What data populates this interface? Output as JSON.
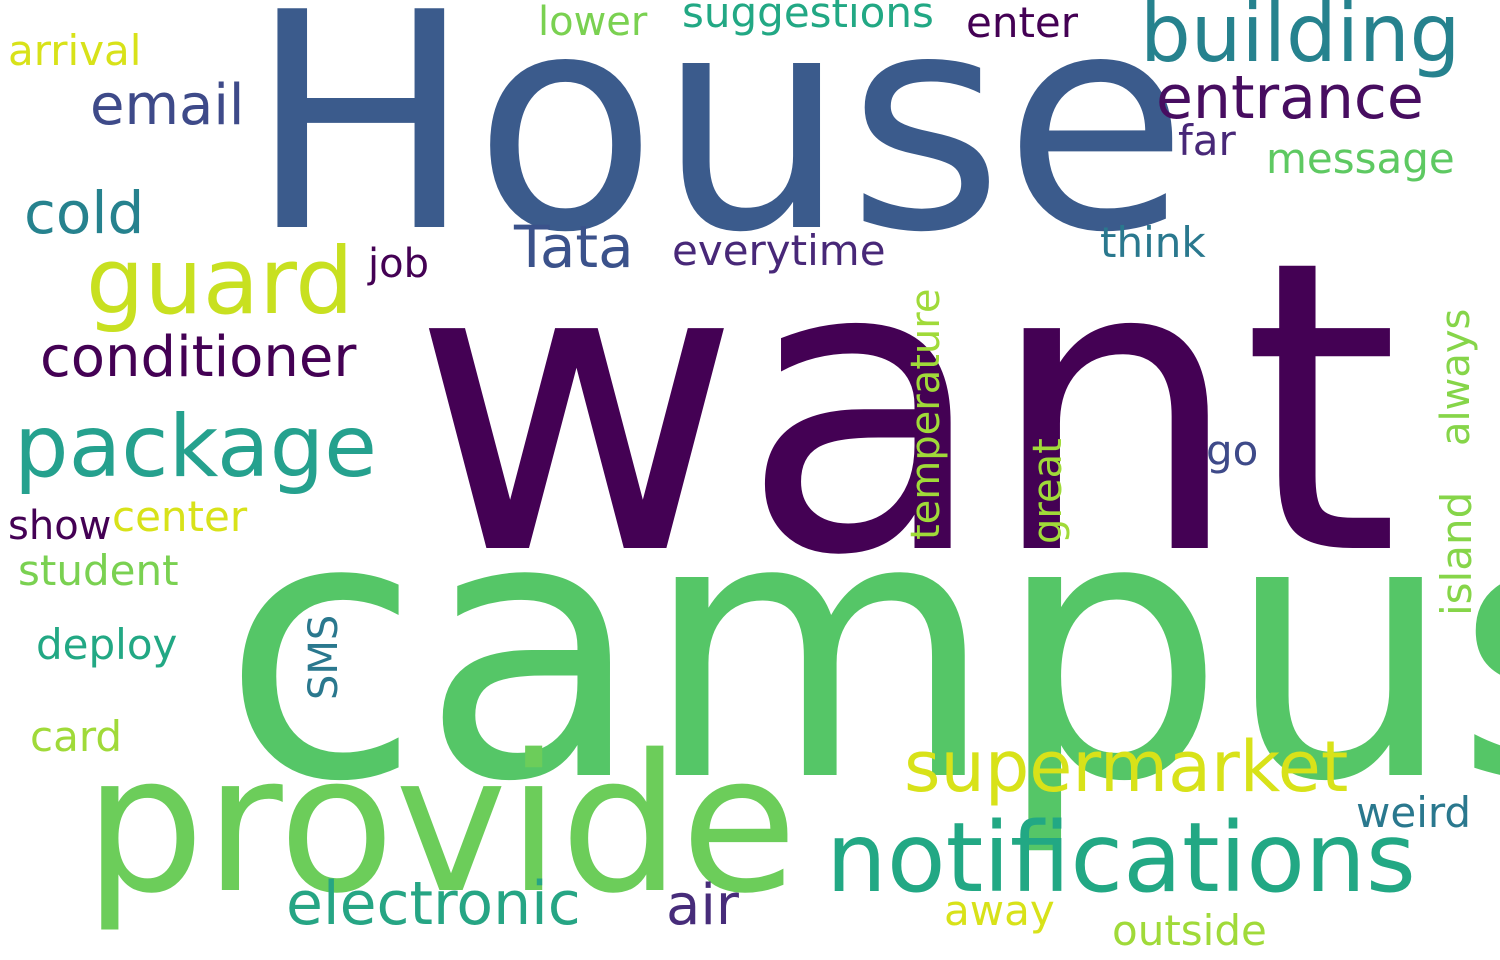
{
  "words": [
    {
      "text": "House",
      "color": "#3b5b8c"
    },
    {
      "text": "want",
      "color": "#440154"
    },
    {
      "text": "campus",
      "color": "#55c667"
    },
    {
      "text": "provide",
      "color": "#6ccd5a"
    },
    {
      "text": "notifications",
      "color": "#22a884"
    },
    {
      "text": "building",
      "color": "#26828e"
    },
    {
      "text": "package",
      "color": "#25a18e"
    },
    {
      "text": "guard",
      "color": "#c8e020"
    },
    {
      "text": "supermarket",
      "color": "#d8e219"
    },
    {
      "text": "entrance",
      "color": "#470d60"
    },
    {
      "text": "conditioner",
      "color": "#440154"
    },
    {
      "text": "electronic",
      "color": "#26a584"
    },
    {
      "text": "email",
      "color": "#3e4a89"
    },
    {
      "text": "cold",
      "color": "#26828e"
    },
    {
      "text": "Tata",
      "color": "#3b528b"
    },
    {
      "text": "air",
      "color": "#472c7a"
    },
    {
      "text": "suggestions",
      "color": "#22a884"
    },
    {
      "text": "message",
      "color": "#5ec962"
    },
    {
      "text": "think",
      "color": "#2a788e"
    },
    {
      "text": "everytime",
      "color": "#482878"
    },
    {
      "text": "arrival",
      "color": "#d8e219"
    },
    {
      "text": "lower",
      "color": "#7ad151"
    },
    {
      "text": "enter",
      "color": "#440154"
    },
    {
      "text": "far",
      "color": "#482878"
    },
    {
      "text": "job",
      "color": "#440154"
    },
    {
      "text": "go",
      "color": "#3e4a89"
    },
    {
      "text": "center",
      "color": "#d8e219"
    },
    {
      "text": "show",
      "color": "#440154"
    },
    {
      "text": "student",
      "color": "#7ad151"
    },
    {
      "text": "deploy",
      "color": "#22a884"
    },
    {
      "text": "card",
      "color": "#a0da39"
    },
    {
      "text": "weird",
      "color": "#2a788e"
    },
    {
      "text": "away",
      "color": "#d8e219"
    },
    {
      "text": "outside",
      "color": "#a0da39"
    },
    {
      "text": "temperature",
      "color": "#a0da39"
    },
    {
      "text": "always",
      "color": "#86d549"
    },
    {
      "text": "island",
      "color": "#86d549"
    },
    {
      "text": "great",
      "color": "#a0da39"
    },
    {
      "text": "SMS",
      "color": "#2a788e"
    }
  ]
}
